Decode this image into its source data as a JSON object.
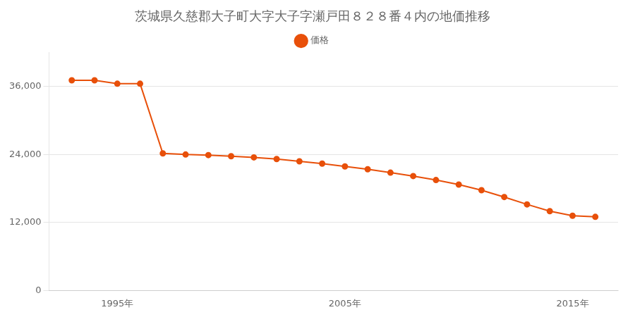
{
  "chart_data": {
    "type": "line",
    "title": "茨城県久慈郡大子町大字大子字瀬戸田８２８番４内の地価推移",
    "x": [
      1993,
      1994,
      1995,
      1996,
      1997,
      1998,
      1999,
      2000,
      2001,
      2002,
      2003,
      2004,
      2005,
      2006,
      2007,
      2008,
      2009,
      2010,
      2011,
      2012,
      2013,
      2014,
      2015,
      2016
    ],
    "series": [
      {
        "name": "価格",
        "color": "#e8500a",
        "marker": "circle",
        "values": [
          37100,
          37100,
          36500,
          36500,
          24200,
          24000,
          23900,
          23700,
          23500,
          23200,
          22800,
          22400,
          21900,
          21400,
          20800,
          20200,
          19500,
          18700,
          17700,
          16500,
          15200,
          14000,
          13200,
          13000
        ]
      }
    ],
    "xlim": [
      1992,
      2017
    ],
    "xticks": [
      {
        "value": 1995,
        "label": "1995年"
      },
      {
        "value": 2005,
        "label": "2005年"
      },
      {
        "value": 2015,
        "label": "2015年"
      }
    ],
    "ylim": [
      0,
      42000
    ],
    "yticks": [
      0,
      {
        "value": 12000,
        "label": "12,000"
      },
      {
        "value": 24000,
        "label": "24,000"
      },
      {
        "value": 36000,
        "label": "36,000"
      }
    ],
    "grid": "y",
    "legend": "top"
  }
}
